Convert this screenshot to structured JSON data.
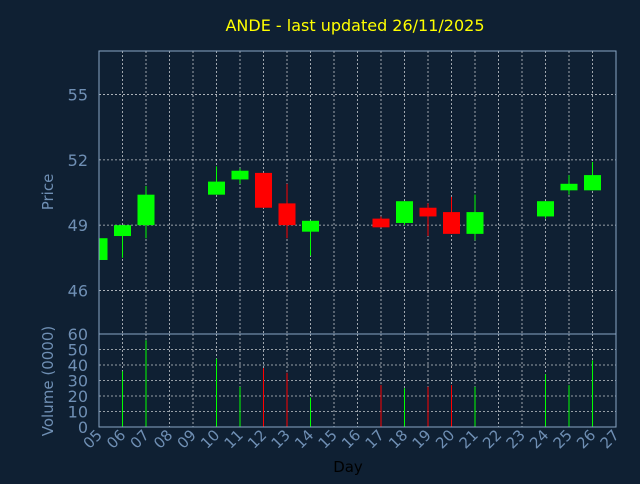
{
  "colors": {
    "background": "#0f2033",
    "title": "#ffff00",
    "axis_text": "#6f8fb4",
    "frame": "#8aa6c4",
    "grid": "#ffffff",
    "up": "#00ff00",
    "down": "#ff0000",
    "xlabel": "#000000"
  },
  "chart_data": [
    {
      "type": "candlestick",
      "title": "ANDE - last updated 26/11/2025",
      "ylabel": "Price",
      "ylim": [
        44,
        57
      ],
      "yticks": [
        46,
        49,
        52,
        55
      ],
      "grid": true,
      "x_categories": [
        "05",
        "06",
        "07",
        "08",
        "09",
        "10",
        "11",
        "12",
        "13",
        "14",
        "15",
        "16",
        "17",
        "18",
        "19",
        "20",
        "21",
        "22",
        "23",
        "24",
        "25",
        "26",
        "27"
      ],
      "candles": [
        {
          "day": "05",
          "open": 47.4,
          "close": 48.4,
          "high": 48.4,
          "low": 47.4
        },
        {
          "day": "06",
          "open": 48.5,
          "close": 49.0,
          "high": 49.0,
          "low": 47.5
        },
        {
          "day": "07",
          "open": 49.0,
          "close": 50.4,
          "high": 50.8,
          "low": 48.4
        },
        {
          "day": "10",
          "open": 50.4,
          "close": 51.0,
          "high": 51.7,
          "low": 50.4
        },
        {
          "day": "11",
          "open": 51.1,
          "close": 51.5,
          "high": 51.6,
          "low": 50.9
        },
        {
          "day": "12",
          "open": 51.4,
          "close": 49.8,
          "high": 51.4,
          "low": 49.8
        },
        {
          "day": "13",
          "open": 50.0,
          "close": 49.0,
          "high": 50.9,
          "low": 48.4
        },
        {
          "day": "14",
          "open": 48.7,
          "close": 49.2,
          "high": 49.2,
          "low": 47.6
        },
        {
          "day": "17",
          "open": 49.3,
          "close": 48.9,
          "high": 49.4,
          "low": 48.9
        },
        {
          "day": "18",
          "open": 49.1,
          "close": 50.1,
          "high": 50.1,
          "low": 49.0
        },
        {
          "day": "19",
          "open": 49.8,
          "close": 49.4,
          "high": 50.0,
          "low": 48.5
        },
        {
          "day": "20",
          "open": 49.6,
          "close": 48.6,
          "high": 50.3,
          "low": 48.6
        },
        {
          "day": "21",
          "open": 48.6,
          "close": 49.6,
          "high": 50.4,
          "low": 48.3
        },
        {
          "day": "24",
          "open": 49.4,
          "close": 50.1,
          "high": 50.1,
          "low": 49.3
        },
        {
          "day": "25",
          "open": 50.6,
          "close": 50.9,
          "high": 51.3,
          "low": 50.4
        },
        {
          "day": "26",
          "open": 50.6,
          "close": 51.3,
          "high": 51.9,
          "low": 50.6
        }
      ]
    },
    {
      "type": "bar",
      "ylabel": "Volume (0000)",
      "xlabel": "Day",
      "ylim": [
        0,
        60
      ],
      "yticks": [
        0,
        10,
        20,
        30,
        40,
        50,
        60
      ],
      "grid": true,
      "categories": [
        "05",
        "06",
        "07",
        "08",
        "09",
        "10",
        "11",
        "12",
        "13",
        "14",
        "15",
        "16",
        "17",
        "18",
        "19",
        "20",
        "21",
        "22",
        "23",
        "24",
        "25",
        "26",
        "27"
      ],
      "bars": [
        {
          "day": "06",
          "value": 36,
          "direction": "up"
        },
        {
          "day": "07",
          "value": 56,
          "direction": "up"
        },
        {
          "day": "10",
          "value": 44,
          "direction": "up"
        },
        {
          "day": "11",
          "value": 26,
          "direction": "up"
        },
        {
          "day": "12",
          "value": 38,
          "direction": "down"
        },
        {
          "day": "13",
          "value": 35,
          "direction": "down"
        },
        {
          "day": "14",
          "value": 19,
          "direction": "up"
        },
        {
          "day": "17",
          "value": 27,
          "direction": "down"
        },
        {
          "day": "18",
          "value": 25,
          "direction": "up"
        },
        {
          "day": "19",
          "value": 26,
          "direction": "down"
        },
        {
          "day": "20",
          "value": 27,
          "direction": "down"
        },
        {
          "day": "21",
          "value": 26,
          "direction": "up"
        },
        {
          "day": "24",
          "value": 34,
          "direction": "up"
        },
        {
          "day": "25",
          "value": 27,
          "direction": "up"
        },
        {
          "day": "26",
          "value": 43,
          "direction": "up"
        }
      ]
    }
  ]
}
